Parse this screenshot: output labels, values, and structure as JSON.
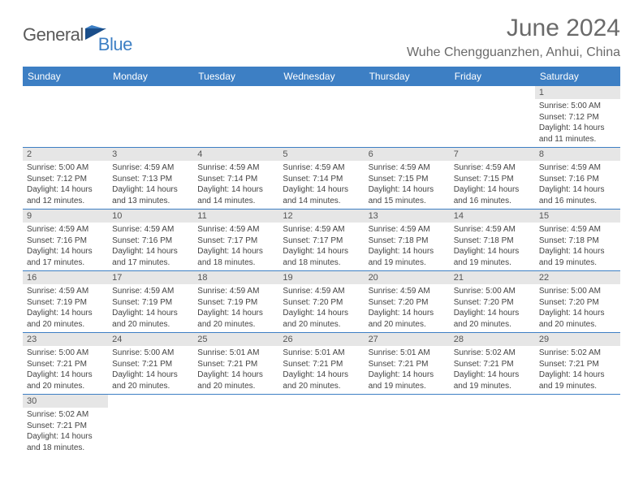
{
  "logo": {
    "general": "General",
    "blue": "Blue"
  },
  "title": "June 2024",
  "location": "Wuhe Chengguanzhen, Anhui, China",
  "colors": {
    "header_bg": "#3d7fc4",
    "header_text": "#ffffff",
    "daynum_bg": "#e6e6e6",
    "border": "#3d7fc4",
    "title_color": "#6a6a6a"
  },
  "dayNames": [
    "Sunday",
    "Monday",
    "Tuesday",
    "Wednesday",
    "Thursday",
    "Friday",
    "Saturday"
  ],
  "weeks": [
    [
      null,
      null,
      null,
      null,
      null,
      null,
      {
        "n": "1",
        "sunrise": "5:00 AM",
        "sunset": "7:12 PM",
        "daylight": "14 hours and 11 minutes."
      }
    ],
    [
      {
        "n": "2",
        "sunrise": "5:00 AM",
        "sunset": "7:12 PM",
        "daylight": "14 hours and 12 minutes."
      },
      {
        "n": "3",
        "sunrise": "4:59 AM",
        "sunset": "7:13 PM",
        "daylight": "14 hours and 13 minutes."
      },
      {
        "n": "4",
        "sunrise": "4:59 AM",
        "sunset": "7:14 PM",
        "daylight": "14 hours and 14 minutes."
      },
      {
        "n": "5",
        "sunrise": "4:59 AM",
        "sunset": "7:14 PM",
        "daylight": "14 hours and 14 minutes."
      },
      {
        "n": "6",
        "sunrise": "4:59 AM",
        "sunset": "7:15 PM",
        "daylight": "14 hours and 15 minutes."
      },
      {
        "n": "7",
        "sunrise": "4:59 AM",
        "sunset": "7:15 PM",
        "daylight": "14 hours and 16 minutes."
      },
      {
        "n": "8",
        "sunrise": "4:59 AM",
        "sunset": "7:16 PM",
        "daylight": "14 hours and 16 minutes."
      }
    ],
    [
      {
        "n": "9",
        "sunrise": "4:59 AM",
        "sunset": "7:16 PM",
        "daylight": "14 hours and 17 minutes."
      },
      {
        "n": "10",
        "sunrise": "4:59 AM",
        "sunset": "7:16 PM",
        "daylight": "14 hours and 17 minutes."
      },
      {
        "n": "11",
        "sunrise": "4:59 AM",
        "sunset": "7:17 PM",
        "daylight": "14 hours and 18 minutes."
      },
      {
        "n": "12",
        "sunrise": "4:59 AM",
        "sunset": "7:17 PM",
        "daylight": "14 hours and 18 minutes."
      },
      {
        "n": "13",
        "sunrise": "4:59 AM",
        "sunset": "7:18 PM",
        "daylight": "14 hours and 19 minutes."
      },
      {
        "n": "14",
        "sunrise": "4:59 AM",
        "sunset": "7:18 PM",
        "daylight": "14 hours and 19 minutes."
      },
      {
        "n": "15",
        "sunrise": "4:59 AM",
        "sunset": "7:18 PM",
        "daylight": "14 hours and 19 minutes."
      }
    ],
    [
      {
        "n": "16",
        "sunrise": "4:59 AM",
        "sunset": "7:19 PM",
        "daylight": "14 hours and 20 minutes."
      },
      {
        "n": "17",
        "sunrise": "4:59 AM",
        "sunset": "7:19 PM",
        "daylight": "14 hours and 20 minutes."
      },
      {
        "n": "18",
        "sunrise": "4:59 AM",
        "sunset": "7:19 PM",
        "daylight": "14 hours and 20 minutes."
      },
      {
        "n": "19",
        "sunrise": "4:59 AM",
        "sunset": "7:20 PM",
        "daylight": "14 hours and 20 minutes."
      },
      {
        "n": "20",
        "sunrise": "4:59 AM",
        "sunset": "7:20 PM",
        "daylight": "14 hours and 20 minutes."
      },
      {
        "n": "21",
        "sunrise": "5:00 AM",
        "sunset": "7:20 PM",
        "daylight": "14 hours and 20 minutes."
      },
      {
        "n": "22",
        "sunrise": "5:00 AM",
        "sunset": "7:20 PM",
        "daylight": "14 hours and 20 minutes."
      }
    ],
    [
      {
        "n": "23",
        "sunrise": "5:00 AM",
        "sunset": "7:21 PM",
        "daylight": "14 hours and 20 minutes."
      },
      {
        "n": "24",
        "sunrise": "5:00 AM",
        "sunset": "7:21 PM",
        "daylight": "14 hours and 20 minutes."
      },
      {
        "n": "25",
        "sunrise": "5:01 AM",
        "sunset": "7:21 PM",
        "daylight": "14 hours and 20 minutes."
      },
      {
        "n": "26",
        "sunrise": "5:01 AM",
        "sunset": "7:21 PM",
        "daylight": "14 hours and 20 minutes."
      },
      {
        "n": "27",
        "sunrise": "5:01 AM",
        "sunset": "7:21 PM",
        "daylight": "14 hours and 19 minutes."
      },
      {
        "n": "28",
        "sunrise": "5:02 AM",
        "sunset": "7:21 PM",
        "daylight": "14 hours and 19 minutes."
      },
      {
        "n": "29",
        "sunrise": "5:02 AM",
        "sunset": "7:21 PM",
        "daylight": "14 hours and 19 minutes."
      }
    ],
    [
      {
        "n": "30",
        "sunrise": "5:02 AM",
        "sunset": "7:21 PM",
        "daylight": "14 hours and 18 minutes."
      },
      null,
      null,
      null,
      null,
      null,
      null
    ]
  ],
  "labels": {
    "sunrise": "Sunrise:",
    "sunset": "Sunset:",
    "daylight": "Daylight:"
  }
}
